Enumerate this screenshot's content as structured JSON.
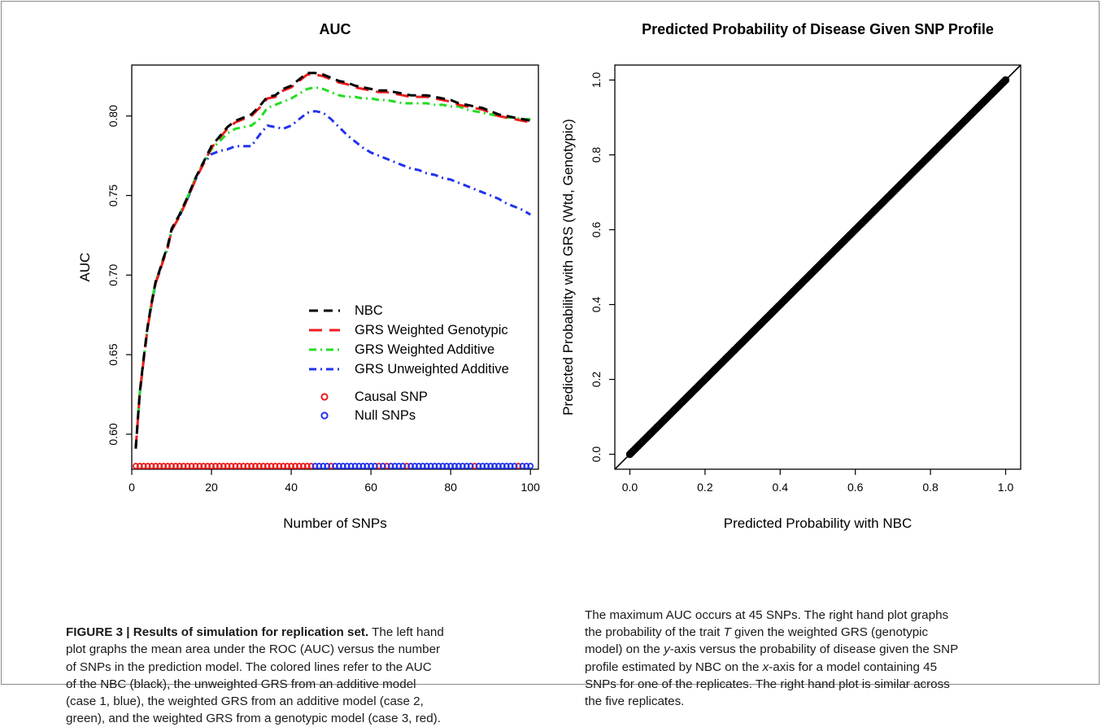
{
  "chart_data": [
    {
      "type": "line",
      "title": "AUC",
      "xlabel": "Number of SNPs",
      "ylabel": "AUC",
      "xlim": [
        0,
        102
      ],
      "ylim": [
        0.578,
        0.832
      ],
      "xticks": [
        0,
        20,
        40,
        60,
        80,
        100
      ],
      "yticks": [
        0.6,
        0.65,
        0.7,
        0.75,
        0.8
      ],
      "xtick_labels": [
        "0",
        "20",
        "40",
        "60",
        "80",
        "100"
      ],
      "ytick_labels": [
        "0.60",
        "0.65",
        "0.70",
        "0.75",
        "0.80"
      ],
      "grid": false,
      "legend_position": "center-right",
      "series": [
        {
          "name": "NBC",
          "color": "#000000",
          "dash": "dashed",
          "x": [
            1,
            2,
            3,
            4,
            5,
            6,
            7,
            8,
            9,
            10,
            12,
            14,
            16,
            18,
            20,
            22,
            24,
            26,
            28,
            30,
            32,
            34,
            36,
            38,
            40,
            42,
            44,
            46,
            48,
            50,
            52,
            54,
            56,
            58,
            60,
            62,
            64,
            66,
            68,
            70,
            72,
            74,
            76,
            78,
            80,
            82,
            84,
            86,
            88,
            90,
            92,
            94,
            96,
            98,
            100
          ],
          "y": [
            0.591,
            0.626,
            0.648,
            0.668,
            0.683,
            0.696,
            0.703,
            0.711,
            0.718,
            0.729,
            0.738,
            0.749,
            0.761,
            0.771,
            0.781,
            0.787,
            0.793,
            0.797,
            0.799,
            0.801,
            0.806,
            0.812,
            0.813,
            0.817,
            0.819,
            0.823,
            0.827,
            0.827,
            0.826,
            0.824,
            0.822,
            0.821,
            0.819,
            0.818,
            0.817,
            0.816,
            0.816,
            0.815,
            0.814,
            0.813,
            0.813,
            0.813,
            0.812,
            0.811,
            0.81,
            0.808,
            0.807,
            0.806,
            0.805,
            0.803,
            0.801,
            0.8,
            0.799,
            0.798,
            0.797
          ]
        },
        {
          "name": "GRS Weighted Genotypic",
          "color": "#ee1c1c",
          "dash": "longdash",
          "x": [
            1,
            2,
            3,
            4,
            5,
            6,
            7,
            8,
            9,
            10,
            12,
            14,
            16,
            18,
            20,
            22,
            24,
            26,
            28,
            30,
            32,
            34,
            36,
            38,
            40,
            42,
            44,
            46,
            48,
            50,
            52,
            54,
            56,
            58,
            60,
            62,
            64,
            66,
            68,
            70,
            72,
            74,
            76,
            78,
            80,
            82,
            84,
            86,
            88,
            90,
            92,
            94,
            96,
            98,
            100
          ],
          "y": [
            0.591,
            0.625,
            0.647,
            0.667,
            0.682,
            0.695,
            0.702,
            0.71,
            0.717,
            0.728,
            0.737,
            0.748,
            0.76,
            0.77,
            0.78,
            0.786,
            0.792,
            0.796,
            0.798,
            0.8,
            0.805,
            0.811,
            0.812,
            0.816,
            0.818,
            0.822,
            0.826,
            0.826,
            0.825,
            0.823,
            0.821,
            0.82,
            0.818,
            0.817,
            0.816,
            0.815,
            0.815,
            0.814,
            0.813,
            0.812,
            0.812,
            0.812,
            0.811,
            0.81,
            0.809,
            0.807,
            0.806,
            0.805,
            0.804,
            0.802,
            0.8,
            0.799,
            0.798,
            0.797,
            0.796
          ]
        },
        {
          "name": "GRS Weighted Additive",
          "color": "#22dd22",
          "dash": "dotdash",
          "x": [
            1,
            2,
            3,
            4,
            5,
            6,
            7,
            8,
            9,
            10,
            12,
            14,
            16,
            18,
            20,
            22,
            24,
            26,
            28,
            30,
            32,
            34,
            36,
            38,
            40,
            42,
            44,
            46,
            48,
            50,
            52,
            54,
            56,
            58,
            60,
            62,
            64,
            66,
            68,
            70,
            72,
            74,
            76,
            78,
            80,
            82,
            84,
            86,
            88,
            90,
            92,
            94,
            96,
            98,
            100
          ],
          "y": [
            0.591,
            0.626,
            0.648,
            0.668,
            0.683,
            0.696,
            0.703,
            0.711,
            0.718,
            0.729,
            0.738,
            0.749,
            0.761,
            0.771,
            0.779,
            0.784,
            0.789,
            0.792,
            0.793,
            0.794,
            0.798,
            0.805,
            0.807,
            0.809,
            0.811,
            0.814,
            0.817,
            0.818,
            0.817,
            0.815,
            0.813,
            0.812,
            0.812,
            0.811,
            0.811,
            0.81,
            0.81,
            0.809,
            0.808,
            0.808,
            0.808,
            0.808,
            0.807,
            0.807,
            0.806,
            0.806,
            0.804,
            0.803,
            0.802,
            0.801,
            0.8,
            0.799,
            0.799,
            0.798,
            0.798
          ]
        },
        {
          "name": "GRS Unweighted Additive",
          "color": "#2233ee",
          "dash": "dotdash",
          "x": [
            1,
            2,
            3,
            4,
            5,
            6,
            7,
            8,
            9,
            10,
            12,
            14,
            16,
            18,
            20,
            22,
            24,
            26,
            28,
            30,
            32,
            34,
            36,
            38,
            40,
            42,
            44,
            46,
            48,
            50,
            52,
            54,
            56,
            58,
            60,
            62,
            64,
            66,
            68,
            70,
            72,
            74,
            76,
            78,
            80,
            82,
            84,
            86,
            88,
            90,
            92,
            94,
            96,
            98,
            100
          ],
          "y": [
            0.591,
            0.625,
            0.647,
            0.667,
            0.682,
            0.695,
            0.702,
            0.71,
            0.717,
            0.728,
            0.737,
            0.748,
            0.76,
            0.77,
            0.776,
            0.778,
            0.779,
            0.781,
            0.781,
            0.781,
            0.788,
            0.794,
            0.793,
            0.792,
            0.794,
            0.798,
            0.802,
            0.803,
            0.802,
            0.798,
            0.793,
            0.788,
            0.784,
            0.78,
            0.777,
            0.775,
            0.773,
            0.771,
            0.769,
            0.767,
            0.766,
            0.764,
            0.763,
            0.761,
            0.76,
            0.758,
            0.756,
            0.754,
            0.752,
            0.75,
            0.748,
            0.745,
            0.743,
            0.741,
            0.738
          ]
        }
      ],
      "markers": {
        "y": 0.58,
        "causal_color": "#ee1c1c",
        "null_color": "#2233ee",
        "causal_x": [
          1,
          2,
          3,
          4,
          5,
          6,
          7,
          8,
          9,
          10,
          11,
          12,
          13,
          14,
          15,
          16,
          17,
          18,
          19,
          20,
          21,
          22,
          23,
          24,
          25,
          26,
          27,
          28,
          29,
          30,
          31,
          32,
          33,
          34,
          35,
          36,
          37,
          38,
          39,
          40,
          41,
          42,
          43,
          44,
          45,
          50,
          62,
          64,
          69,
          86,
          97
        ],
        "null_x": [
          46,
          47,
          48,
          49,
          51,
          52,
          53,
          54,
          55,
          56,
          57,
          58,
          59,
          60,
          61,
          63,
          65,
          66,
          67,
          68,
          70,
          71,
          72,
          73,
          74,
          75,
          76,
          77,
          78,
          79,
          80,
          81,
          82,
          83,
          84,
          85,
          87,
          88,
          89,
          90,
          91,
          92,
          93,
          94,
          95,
          96,
          98,
          99,
          100
        ]
      },
      "legend": {
        "lines": [
          "NBC",
          "GRS Weighted Genotypic",
          "GRS Weighted Additive",
          "GRS Unweighted Additive"
        ],
        "points": [
          "Causal SNP",
          "Null SNPs"
        ]
      }
    },
    {
      "type": "scatter",
      "title": "Predicted Probability of Disease Given SNP Profile",
      "xlabel": "Predicted Probability with NBC",
      "ylabel": "Predicted Probability with GRS (Wtd, Genotypic)",
      "xlim": [
        -0.04,
        1.04
      ],
      "ylim": [
        -0.04,
        1.04
      ],
      "xticks": [
        0.0,
        0.2,
        0.4,
        0.6,
        0.8,
        1.0
      ],
      "yticks": [
        0.0,
        0.2,
        0.4,
        0.6,
        0.8,
        1.0
      ],
      "xtick_labels": [
        "0.0",
        "0.2",
        "0.4",
        "0.6",
        "0.8",
        "1.0"
      ],
      "ytick_labels": [
        "0.0",
        "0.2",
        "0.4",
        "0.6",
        "0.8",
        "1.0"
      ],
      "grid": false,
      "reference_line": {
        "slope": 1,
        "intercept": 0
      },
      "points_range": [
        0.0,
        1.0
      ],
      "point_color": "#000000"
    }
  ],
  "caption": {
    "figure_label": "FIGURE 3 | Results of simulation for replication set.",
    "left_lines": [
      " The left hand",
      "plot graphs the mean area under the ROC (AUC) versus the number",
      "of SNPs in the prediction model. The colored lines refer to the AUC",
      "of the NBC (black), the unweighted GRS from an additive model",
      "(case 1, blue), the weighted GRS from an additive model (case 2,",
      "green), and the weighted GRS from a genotypic model (case 3, red)."
    ],
    "right_lines": [
      "The maximum AUC occurs at 45 SNPs. The right hand plot graphs",
      "the probability of the trait ",
      "T",
      " given the weighted GRS (genotypic",
      "model) on the ",
      "y",
      "-axis versus the probability of disease given the SNP",
      "profile estimated by NBC on the ",
      "x",
      "-axis for a model containing 45",
      "SNPs for one of the replicates. The right hand plot is similar across",
      "the five replicates."
    ]
  }
}
